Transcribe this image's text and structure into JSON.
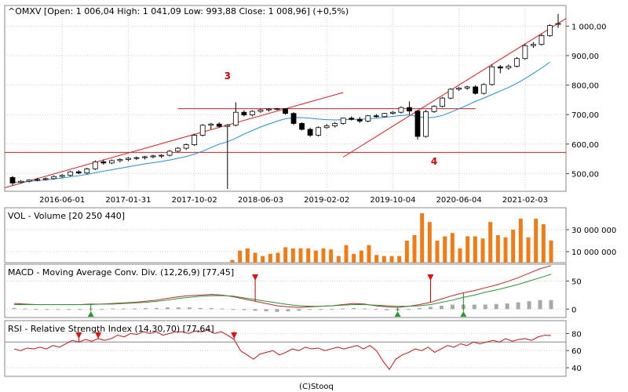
{
  "chart_data": [
    {
      "type": "candlestick",
      "title": "^OMXV [Open: 1 006,04  High: 1 041,09  Low: 993,88  Close: 1 008,96] (+0,5%)",
      "x_tick_labels": [
        "2016-06-01",
        "2017-01-31",
        "2017-10-02",
        "2018-06-03",
        "2019-02-02",
        "2019-10-04",
        "2020-06-04",
        "2021-02-03"
      ],
      "y_tick_labels": [
        "1 000,00",
        "900,00",
        "800,00",
        "700,00",
        "600,00",
        "500,00"
      ],
      "y_ticks": [
        1000,
        900,
        800,
        700,
        600,
        500
      ],
      "ylim": [
        440,
        1070
      ],
      "grid": true,
      "candles": [
        {
          "o": 487,
          "h": 492,
          "l": 460,
          "c": 468
        },
        {
          "o": 470,
          "h": 478,
          "l": 466,
          "c": 474
        },
        {
          "o": 474,
          "h": 481,
          "l": 470,
          "c": 478
        },
        {
          "o": 478,
          "h": 485,
          "l": 474,
          "c": 480
        },
        {
          "o": 480,
          "h": 487,
          "l": 476,
          "c": 483
        },
        {
          "o": 483,
          "h": 494,
          "l": 480,
          "c": 490
        },
        {
          "o": 490,
          "h": 498,
          "l": 486,
          "c": 494
        },
        {
          "o": 494,
          "h": 510,
          "l": 490,
          "c": 506
        },
        {
          "o": 506,
          "h": 512,
          "l": 498,
          "c": 502
        },
        {
          "o": 502,
          "h": 520,
          "l": 498,
          "c": 516
        },
        {
          "o": 516,
          "h": 545,
          "l": 512,
          "c": 540
        },
        {
          "o": 540,
          "h": 548,
          "l": 530,
          "c": 536
        },
        {
          "o": 536,
          "h": 548,
          "l": 532,
          "c": 544
        },
        {
          "o": 544,
          "h": 552,
          "l": 538,
          "c": 548
        },
        {
          "o": 548,
          "h": 556,
          "l": 542,
          "c": 552
        },
        {
          "o": 552,
          "h": 558,
          "l": 546,
          "c": 554
        },
        {
          "o": 554,
          "h": 560,
          "l": 548,
          "c": 557
        },
        {
          "o": 557,
          "h": 564,
          "l": 552,
          "c": 560
        },
        {
          "o": 560,
          "h": 566,
          "l": 553,
          "c": 562
        },
        {
          "o": 562,
          "h": 580,
          "l": 558,
          "c": 576
        },
        {
          "o": 576,
          "h": 590,
          "l": 572,
          "c": 586
        },
        {
          "o": 586,
          "h": 602,
          "l": 580,
          "c": 598
        },
        {
          "o": 598,
          "h": 635,
          "l": 594,
          "c": 630
        },
        {
          "o": 630,
          "h": 668,
          "l": 626,
          "c": 664
        },
        {
          "o": 664,
          "h": 672,
          "l": 650,
          "c": 668
        },
        {
          "o": 668,
          "h": 674,
          "l": 656,
          "c": 660
        },
        {
          "o": 660,
          "h": 668,
          "l": 448,
          "c": 664
        },
        {
          "o": 664,
          "h": 742,
          "l": 660,
          "c": 708
        },
        {
          "o": 708,
          "h": 715,
          "l": 694,
          "c": 699
        },
        {
          "o": 699,
          "h": 715,
          "l": 694,
          "c": 711
        },
        {
          "o": 711,
          "h": 720,
          "l": 706,
          "c": 716
        },
        {
          "o": 716,
          "h": 722,
          "l": 710,
          "c": 719
        },
        {
          "o": 719,
          "h": 723,
          "l": 714,
          "c": 720
        },
        {
          "o": 720,
          "h": 722,
          "l": 700,
          "c": 704
        },
        {
          "o": 704,
          "h": 708,
          "l": 665,
          "c": 670
        },
        {
          "o": 670,
          "h": 674,
          "l": 646,
          "c": 650
        },
        {
          "o": 650,
          "h": 656,
          "l": 624,
          "c": 630
        },
        {
          "o": 630,
          "h": 660,
          "l": 626,
          "c": 656
        },
        {
          "o": 656,
          "h": 668,
          "l": 652,
          "c": 662
        },
        {
          "o": 662,
          "h": 675,
          "l": 656,
          "c": 670
        },
        {
          "o": 670,
          "h": 690,
          "l": 666,
          "c": 688
        },
        {
          "o": 688,
          "h": 694,
          "l": 680,
          "c": 684
        },
        {
          "o": 684,
          "h": 692,
          "l": 672,
          "c": 678
        },
        {
          "o": 678,
          "h": 698,
          "l": 674,
          "c": 696
        },
        {
          "o": 696,
          "h": 702,
          "l": 690,
          "c": 693
        },
        {
          "o": 693,
          "h": 706,
          "l": 690,
          "c": 704
        },
        {
          "o": 704,
          "h": 712,
          "l": 700,
          "c": 708
        },
        {
          "o": 708,
          "h": 728,
          "l": 704,
          "c": 724
        },
        {
          "o": 724,
          "h": 745,
          "l": 700,
          "c": 712
        },
        {
          "o": 712,
          "h": 716,
          "l": 615,
          "c": 626
        },
        {
          "o": 626,
          "h": 716,
          "l": 622,
          "c": 710
        },
        {
          "o": 710,
          "h": 732,
          "l": 706,
          "c": 728
        },
        {
          "o": 728,
          "h": 760,
          "l": 724,
          "c": 756
        },
        {
          "o": 756,
          "h": 790,
          "l": 752,
          "c": 786
        },
        {
          "o": 786,
          "h": 794,
          "l": 780,
          "c": 790
        },
        {
          "o": 790,
          "h": 798,
          "l": 784,
          "c": 794
        },
        {
          "o": 794,
          "h": 800,
          "l": 768,
          "c": 772
        },
        {
          "o": 772,
          "h": 806,
          "l": 768,
          "c": 802
        },
        {
          "o": 802,
          "h": 870,
          "l": 798,
          "c": 862
        },
        {
          "o": 862,
          "h": 868,
          "l": 840,
          "c": 858
        },
        {
          "o": 858,
          "h": 870,
          "l": 852,
          "c": 864
        },
        {
          "o": 864,
          "h": 895,
          "l": 860,
          "c": 890
        },
        {
          "o": 890,
          "h": 940,
          "l": 886,
          "c": 934
        },
        {
          "o": 934,
          "h": 946,
          "l": 926,
          "c": 938
        },
        {
          "o": 938,
          "h": 974,
          "l": 934,
          "c": 968
        },
        {
          "o": 968,
          "h": 1006,
          "l": 964,
          "c": 1002
        },
        {
          "o": 1006,
          "h": 1041,
          "l": 994,
          "c": 1009
        }
      ],
      "moving_average": [
        470,
        472,
        474,
        476,
        479,
        482,
        485,
        489,
        493,
        497,
        503,
        508,
        513,
        518,
        523,
        528,
        533,
        537,
        541,
        546,
        552,
        558,
        566,
        576,
        588,
        600,
        608,
        620,
        634,
        646,
        658,
        668,
        678,
        686,
        690,
        690,
        688,
        685,
        683,
        682,
        683,
        684,
        684,
        686,
        688,
        691,
        694,
        697,
        699,
        693,
        689,
        691,
        697,
        708,
        720,
        732,
        745,
        756,
        768,
        780,
        792,
        806,
        822,
        840,
        858,
        878
      ],
      "annotations": [
        {
          "text": "3",
          "x_index": 26,
          "y": 820
        },
        {
          "text": "4",
          "x_index": 51,
          "y": 530
        }
      ],
      "colors": {
        "up": "#ffffff",
        "down": "#000000",
        "ma": "#1f8fe0",
        "trendline": "#e21d1d",
        "annotation": "#cc0000"
      }
    },
    {
      "type": "bar",
      "title": "VOL - Volume [20 250 440]",
      "y_tick_labels": [
        "30 000 000",
        "10 000 000"
      ],
      "y_ticks": [
        30000000,
        10000000
      ],
      "ylim": [
        0,
        50000000
      ],
      "values": [
        2500000,
        11000000,
        13000000,
        9000000,
        6000000,
        8000000,
        9000000,
        14000000,
        13000000,
        13000000,
        13000000,
        11000000,
        13000000,
        12000000,
        6000000,
        16000000,
        8000000,
        11000000,
        16000000,
        7000000,
        6000000,
        6000000,
        6000000,
        20000000,
        25000000,
        45000000,
        37000000,
        20000000,
        24000000,
        27000000,
        13000000,
        24000000,
        24000000,
        22000000,
        37000000,
        25000000,
        23000000,
        30000000,
        40000000,
        23000000,
        40000000,
        35000000,
        20250440
      ],
      "color": "#f07c17"
    },
    {
      "type": "line",
      "title": "MACD - Moving Average Conv. Div. (12,26,9) [77,45]",
      "y_tick_labels": [
        "50",
        "0"
      ],
      "y_ticks": [
        50,
        0
      ],
      "ylim": [
        -15,
        80
      ],
      "series": [
        {
          "name": "MACD",
          "color": "#cc2222",
          "values": [
            10,
            9,
            8,
            8,
            8,
            8,
            8,
            9,
            9,
            10,
            11,
            12,
            14,
            16,
            19,
            22,
            24,
            25,
            26,
            25,
            22,
            18,
            14,
            10,
            6,
            4,
            3,
            4,
            5,
            6,
            8,
            10,
            9,
            6,
            4,
            3,
            5,
            8,
            12,
            18,
            24,
            29,
            33,
            38,
            43,
            49,
            56,
            64,
            72,
            77.45
          ]
        },
        {
          "name": "Signal",
          "color": "#229933",
          "values": [
            8,
            8,
            8,
            8,
            8,
            8,
            8,
            8,
            9,
            9,
            10,
            11,
            12,
            14,
            16,
            19,
            21,
            23,
            24,
            24,
            23,
            20,
            17,
            14,
            11,
            8,
            6,
            5,
            5,
            6,
            7,
            8,
            8,
            7,
            6,
            5,
            5,
            6,
            8,
            12,
            16,
            21,
            25,
            30,
            34,
            39,
            44,
            50,
            56,
            62
          ]
        }
      ],
      "histogram": [
        2,
        1,
        0,
        0,
        0,
        0,
        0,
        1,
        0,
        1,
        1,
        1,
        2,
        2,
        3,
        3,
        3,
        2,
        2,
        1,
        -1,
        -2,
        -3,
        -4,
        -5,
        -4,
        -3,
        -1,
        0,
        0,
        1,
        2,
        1,
        -1,
        -2,
        -2,
        0,
        2,
        4,
        6,
        8,
        8,
        8,
        8,
        9,
        10,
        12,
        14,
        16,
        16
      ],
      "markers": [
        {
          "type": "buy",
          "x_index": 7
        },
        {
          "type": "sell",
          "x_index": 22
        },
        {
          "type": "buy",
          "x_index": 35
        },
        {
          "type": "sell",
          "x_index": 38
        },
        {
          "type": "buy",
          "x_index": 41
        }
      ]
    },
    {
      "type": "line",
      "title": "RSI - Relative Strength Index (14,30,70) [77,64]",
      "y_tick_labels": [
        "80",
        "60",
        "40"
      ],
      "y_ticks": [
        80,
        60,
        40
      ],
      "ylim": [
        30,
        95
      ],
      "reference_lines": [
        70
      ],
      "series": [
        {
          "name": "RSI",
          "color": "#cc1111",
          "values": [
            62,
            60,
            63,
            62,
            64,
            62,
            66,
            64,
            68,
            72,
            70,
            73,
            71,
            74,
            72,
            74,
            78,
            76,
            80,
            79,
            82,
            80,
            82,
            78,
            80,
            82,
            82,
            80,
            83,
            82,
            84,
            80,
            82,
            78,
            73,
            60,
            55,
            50,
            56,
            58,
            60,
            55,
            58,
            62,
            60,
            64,
            62,
            63,
            60,
            62,
            64,
            62,
            64,
            66,
            62,
            66,
            60,
            48,
            38,
            50,
            55,
            58,
            62,
            60,
            64,
            58,
            62,
            66,
            64,
            68,
            66,
            70,
            68,
            70,
            72,
            70,
            74,
            71,
            73,
            74,
            72,
            76,
            78,
            77.64
          ]
        }
      ],
      "markers": [
        {
          "type": "sell",
          "x_index": 10
        },
        {
          "type": "sell",
          "x_index": 13
        },
        {
          "type": "sell",
          "x_index": 34
        }
      ]
    }
  ],
  "footer": "(C)Stooq"
}
